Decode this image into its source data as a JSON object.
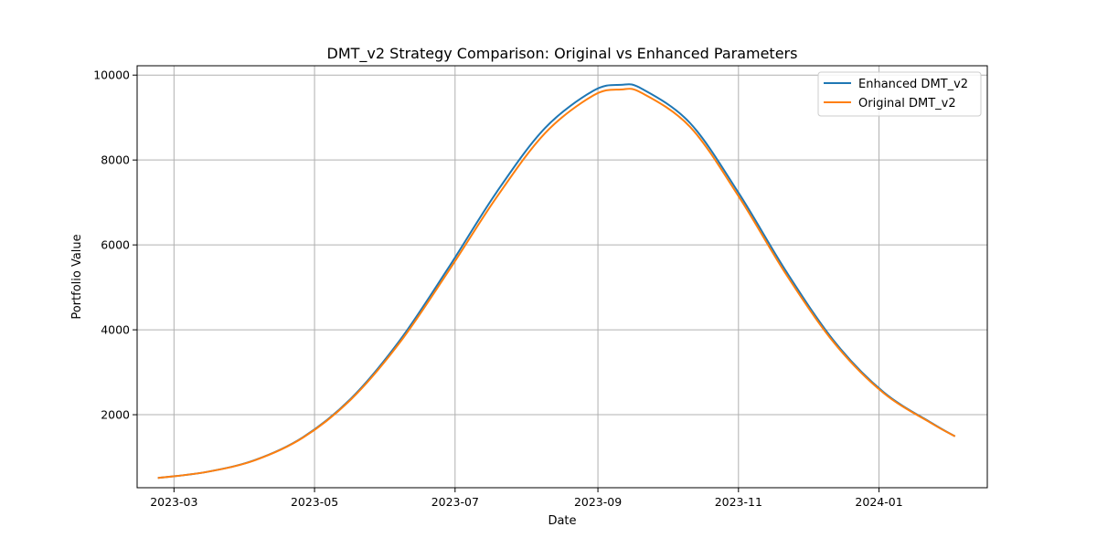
{
  "chart_data": {
    "type": "line",
    "title": "DMT_v2 Strategy Comparison: Original vs Enhanced Parameters",
    "xlabel": "Date",
    "ylabel": "Portfolio Value",
    "xlim": [
      "2023-02-13",
      "2024-02-17"
    ],
    "ylim": [
      280,
      10220
    ],
    "x_ticks": [
      {
        "date": "2023-03-01",
        "label": "2023-03"
      },
      {
        "date": "2023-05-01",
        "label": "2023-05"
      },
      {
        "date": "2023-07-01",
        "label": "2023-07"
      },
      {
        "date": "2023-09-01",
        "label": "2023-09"
      },
      {
        "date": "2023-11-01",
        "label": "2023-11"
      },
      {
        "date": "2024-01-01",
        "label": "2024-01"
      }
    ],
    "y_ticks": [
      2000,
      4000,
      6000,
      8000,
      10000
    ],
    "grid": true,
    "legend_position": "top-right",
    "series": [
      {
        "name": "Enhanced DMT_v2",
        "color": "#1f77b4",
        "points": [
          [
            "2023-02-22",
            510
          ],
          [
            "2023-03-15",
            650
          ],
          [
            "2023-04-05",
            930
          ],
          [
            "2023-04-26",
            1470
          ],
          [
            "2023-05-17",
            2390
          ],
          [
            "2023-06-07",
            3750
          ],
          [
            "2023-06-28",
            5450
          ],
          [
            "2023-07-19",
            7240
          ],
          [
            "2023-08-09",
            8750
          ],
          [
            "2023-08-30",
            9630
          ],
          [
            "2023-09-11",
            9770
          ],
          [
            "2023-09-20",
            9680
          ],
          [
            "2023-10-11",
            8870
          ],
          [
            "2023-11-01",
            7230
          ],
          [
            "2023-11-22",
            5350
          ],
          [
            "2023-12-13",
            3700
          ],
          [
            "2024-01-03",
            2530
          ],
          [
            "2024-01-24",
            1800
          ],
          [
            "2024-02-03",
            1490
          ]
        ]
      },
      {
        "name": "Original DMT_v2",
        "color": "#ff7f0e",
        "points": [
          [
            "2023-02-22",
            510
          ],
          [
            "2023-03-15",
            650
          ],
          [
            "2023-04-05",
            925
          ],
          [
            "2023-04-26",
            1460
          ],
          [
            "2023-05-17",
            2370
          ],
          [
            "2023-06-07",
            3700
          ],
          [
            "2023-06-28",
            5370
          ],
          [
            "2023-07-19",
            7120
          ],
          [
            "2023-08-09",
            8630
          ],
          [
            "2023-08-30",
            9520
          ],
          [
            "2023-09-11",
            9660
          ],
          [
            "2023-09-20",
            9580
          ],
          [
            "2023-10-11",
            8780
          ],
          [
            "2023-11-01",
            7150
          ],
          [
            "2023-11-22",
            5280
          ],
          [
            "2023-12-13",
            3660
          ],
          [
            "2024-01-03",
            2510
          ],
          [
            "2024-01-24",
            1790
          ],
          [
            "2024-02-03",
            1490
          ]
        ]
      }
    ]
  }
}
